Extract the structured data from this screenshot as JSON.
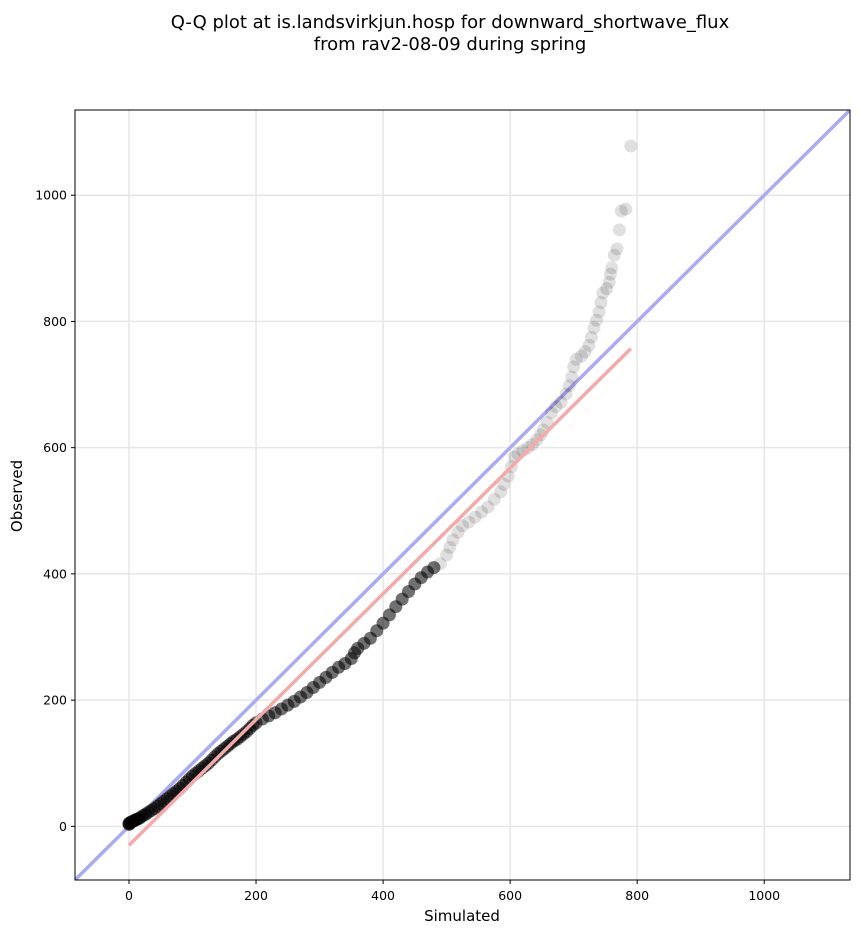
{
  "chart_data": {
    "type": "scatter",
    "title_line1": "Q-Q plot at is.landsvirkjun.hosp for downward_shortwave_flux",
    "title_line2": "from rav2-08-09 during spring",
    "xlabel": "Simulated",
    "ylabel": "Observed",
    "xlim": [
      -85,
      1135
    ],
    "ylim": [
      -85,
      1135
    ],
    "xticks": [
      0,
      200,
      400,
      600,
      800,
      1000
    ],
    "yticks": [
      0,
      200,
      400,
      600,
      800,
      1000
    ],
    "xtick_labels": [
      "0",
      "200",
      "400",
      "600",
      "800",
      "1000"
    ],
    "ytick_labels": [
      "0",
      "200",
      "400",
      "600",
      "800",
      "1000"
    ],
    "grid": true,
    "reference_line": {
      "name": "1:1",
      "color": "#aaaaf5",
      "x": [
        -85,
        1135
      ],
      "y": [
        -85,
        1135
      ]
    },
    "fit_line": {
      "color": "#f5aaaa",
      "x": [
        0,
        790
      ],
      "y": [
        -30,
        757
      ]
    },
    "point_color": "#000000",
    "points": [
      [
        0,
        3
      ],
      [
        0,
        5
      ],
      [
        1,
        4
      ],
      [
        2,
        6
      ],
      [
        4,
        7
      ],
      [
        6,
        8
      ],
      [
        8,
        9
      ],
      [
        10,
        10
      ],
      [
        12,
        11
      ],
      [
        15,
        12
      ],
      [
        18,
        14
      ],
      [
        22,
        17
      ],
      [
        26,
        19
      ],
      [
        30,
        22
      ],
      [
        35,
        25
      ],
      [
        40,
        28
      ],
      [
        45,
        32
      ],
      [
        50,
        36
      ],
      [
        55,
        40
      ],
      [
        60,
        44
      ],
      [
        65,
        48
      ],
      [
        70,
        52
      ],
      [
        75,
        56
      ],
      [
        80,
        60
      ],
      [
        85,
        65
      ],
      [
        90,
        70
      ],
      [
        95,
        75
      ],
      [
        100,
        80
      ],
      [
        105,
        84
      ],
      [
        110,
        88
      ],
      [
        115,
        92
      ],
      [
        120,
        96
      ],
      [
        125,
        100
      ],
      [
        130,
        105
      ],
      [
        135,
        110
      ],
      [
        140,
        115
      ],
      [
        145,
        119
      ],
      [
        150,
        123
      ],
      [
        155,
        127
      ],
      [
        160,
        131
      ],
      [
        165,
        135
      ],
      [
        170,
        138
      ],
      [
        175,
        142
      ],
      [
        180,
        146
      ],
      [
        185,
        150
      ],
      [
        190,
        155
      ],
      [
        195,
        160
      ],
      [
        200,
        164
      ],
      [
        210,
        170
      ],
      [
        220,
        175
      ],
      [
        230,
        180
      ],
      [
        240,
        186
      ],
      [
        250,
        192
      ],
      [
        260,
        198
      ],
      [
        270,
        205
      ],
      [
        280,
        212
      ],
      [
        290,
        220
      ],
      [
        300,
        228
      ],
      [
        310,
        236
      ],
      [
        320,
        244
      ],
      [
        330,
        252
      ],
      [
        340,
        258
      ],
      [
        350,
        266
      ],
      [
        355,
        275
      ],
      [
        360,
        282
      ],
      [
        370,
        290
      ],
      [
        380,
        298
      ],
      [
        390,
        310
      ],
      [
        400,
        322
      ],
      [
        410,
        335
      ],
      [
        420,
        348
      ],
      [
        430,
        360
      ],
      [
        440,
        372
      ],
      [
        450,
        384
      ],
      [
        460,
        394
      ],
      [
        470,
        403
      ],
      [
        480,
        410
      ],
      [
        490,
        416
      ],
      [
        500,
        430
      ],
      [
        505,
        442
      ],
      [
        510,
        454
      ],
      [
        518,
        466
      ],
      [
        525,
        476
      ],
      [
        535,
        482
      ],
      [
        545,
        490
      ],
      [
        555,
        498
      ],
      [
        565,
        506
      ],
      [
        575,
        518
      ],
      [
        585,
        530
      ],
      [
        590,
        542
      ],
      [
        597,
        555
      ],
      [
        602,
        570
      ],
      [
        607,
        585
      ],
      [
        612,
        590
      ],
      [
        620,
        595
      ],
      [
        628,
        600
      ],
      [
        635,
        605
      ],
      [
        642,
        612
      ],
      [
        648,
        620
      ],
      [
        652,
        628
      ],
      [
        658,
        640
      ],
      [
        665,
        655
      ],
      [
        672,
        665
      ],
      [
        680,
        672
      ],
      [
        688,
        685
      ],
      [
        693,
        698
      ],
      [
        697,
        712
      ],
      [
        700,
        728
      ],
      [
        704,
        740
      ],
      [
        712,
        745
      ],
      [
        718,
        752
      ],
      [
        724,
        762
      ],
      [
        728,
        775
      ],
      [
        732,
        790
      ],
      [
        736,
        802
      ],
      [
        740,
        815
      ],
      [
        743,
        830
      ],
      [
        746,
        845
      ],
      [
        752,
        852
      ],
      [
        756,
        862
      ],
      [
        758,
        875
      ],
      [
        760,
        885
      ],
      [
        764,
        905
      ],
      [
        768,
        915
      ],
      [
        772,
        945
      ],
      [
        775,
        975
      ],
      [
        782,
        978
      ],
      [
        790,
        1078
      ]
    ]
  }
}
